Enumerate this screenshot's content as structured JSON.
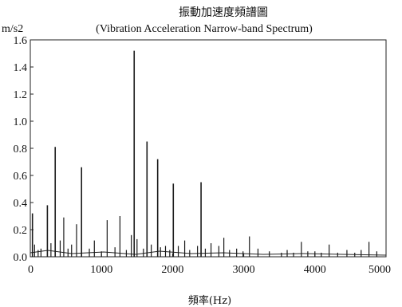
{
  "chart_data": {
    "type": "bar",
    "title": "振動加速度頻譜圖",
    "subtitle": "(Vibration Acceleration Narrow-band Spectrum)",
    "ylabel": "m/s2",
    "xlabel": "頻率(Hz)",
    "xlim": [
      0,
      5000
    ],
    "ylim": [
      0,
      1.6
    ],
    "xticks": [
      "0",
      "1000",
      "2000",
      "3000",
      "4000",
      "5000"
    ],
    "yticks": [
      "0.0",
      "0.2",
      "0.4",
      "0.6",
      "0.8",
      "1.0",
      "1.2",
      "1.4",
      "1.6"
    ],
    "grid": false,
    "series": [
      {
        "x": [
          30,
          60,
          110,
          150,
          240,
          290,
          350,
          420,
          470,
          530,
          580,
          650,
          720,
          830,
          900,
          1000,
          1080,
          1190,
          1260,
          1350,
          1420,
          1460,
          1500,
          1590,
          1640,
          1700,
          1790,
          1830,
          1900,
          1960,
          2010,
          2080,
          2170,
          2240,
          2350,
          2400,
          2460,
          2540,
          2650,
          2720,
          2800,
          2900,
          2990,
          3080,
          3200,
          3360,
          3530,
          3610,
          3700,
          3810,
          3900,
          4000,
          4090,
          4200,
          4320,
          4450,
          4560,
          4650,
          4760,
          4870
        ],
        "values": [
          0.32,
          0.09,
          0.05,
          0.06,
          0.38,
          0.1,
          0.81,
          0.12,
          0.29,
          0.06,
          0.09,
          0.24,
          0.66,
          0.06,
          0.12,
          0.04,
          0.27,
          0.07,
          0.3,
          0.05,
          0.16,
          1.52,
          0.13,
          0.06,
          0.85,
          0.09,
          0.72,
          0.07,
          0.08,
          0.05,
          0.54,
          0.08,
          0.12,
          0.05,
          0.08,
          0.55,
          0.06,
          0.1,
          0.08,
          0.14,
          0.05,
          0.06,
          0.04,
          0.15,
          0.06,
          0.04,
          0.03,
          0.05,
          0.03,
          0.11,
          0.04,
          0.04,
          0.03,
          0.09,
          0.03,
          0.05,
          0.03,
          0.05,
          0.11,
          0.04
        ]
      }
    ]
  }
}
